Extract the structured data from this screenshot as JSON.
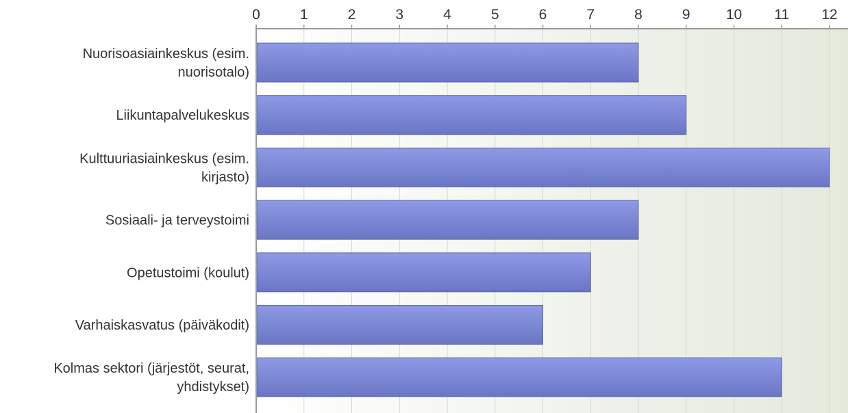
{
  "chart_data": {
    "type": "bar",
    "orientation": "horizontal",
    "categories": [
      [
        "Nuorisoasiainkeskus (esim.",
        "nuorisotalo)"
      ],
      [
        "Liikuntapalvelukeskus"
      ],
      [
        "Kulttuuriasiainkeskus (esim.",
        "kirjasto)"
      ],
      [
        "Sosiaali- ja terveystoimi"
      ],
      [
        "Opetustoimi (koulut)"
      ],
      [
        "Varhaiskasvatus (päiväkodit)"
      ],
      [
        "Kolmas sektori (järjestöt, seurat,",
        "yhdistykset)"
      ]
    ],
    "values": [
      8,
      9,
      12,
      8,
      7,
      6,
      11
    ],
    "xlim": [
      0,
      12
    ],
    "xticks": [
      0,
      1,
      2,
      3,
      4,
      5,
      6,
      7,
      8,
      9,
      10,
      11,
      12
    ],
    "axis_position": "top",
    "grid": true,
    "title": "",
    "xlabel": "",
    "ylabel": "",
    "colors": {
      "bar_top": "#8f9ae6",
      "bar_bottom": "#6a76c4",
      "bar_stroke": "#5c66ad",
      "plot_bg_left": "#ffffff",
      "plot_bg_right": "#e4e9dc",
      "grid": "#d4d9cc",
      "axis": "#999999",
      "text": "#333333"
    }
  }
}
